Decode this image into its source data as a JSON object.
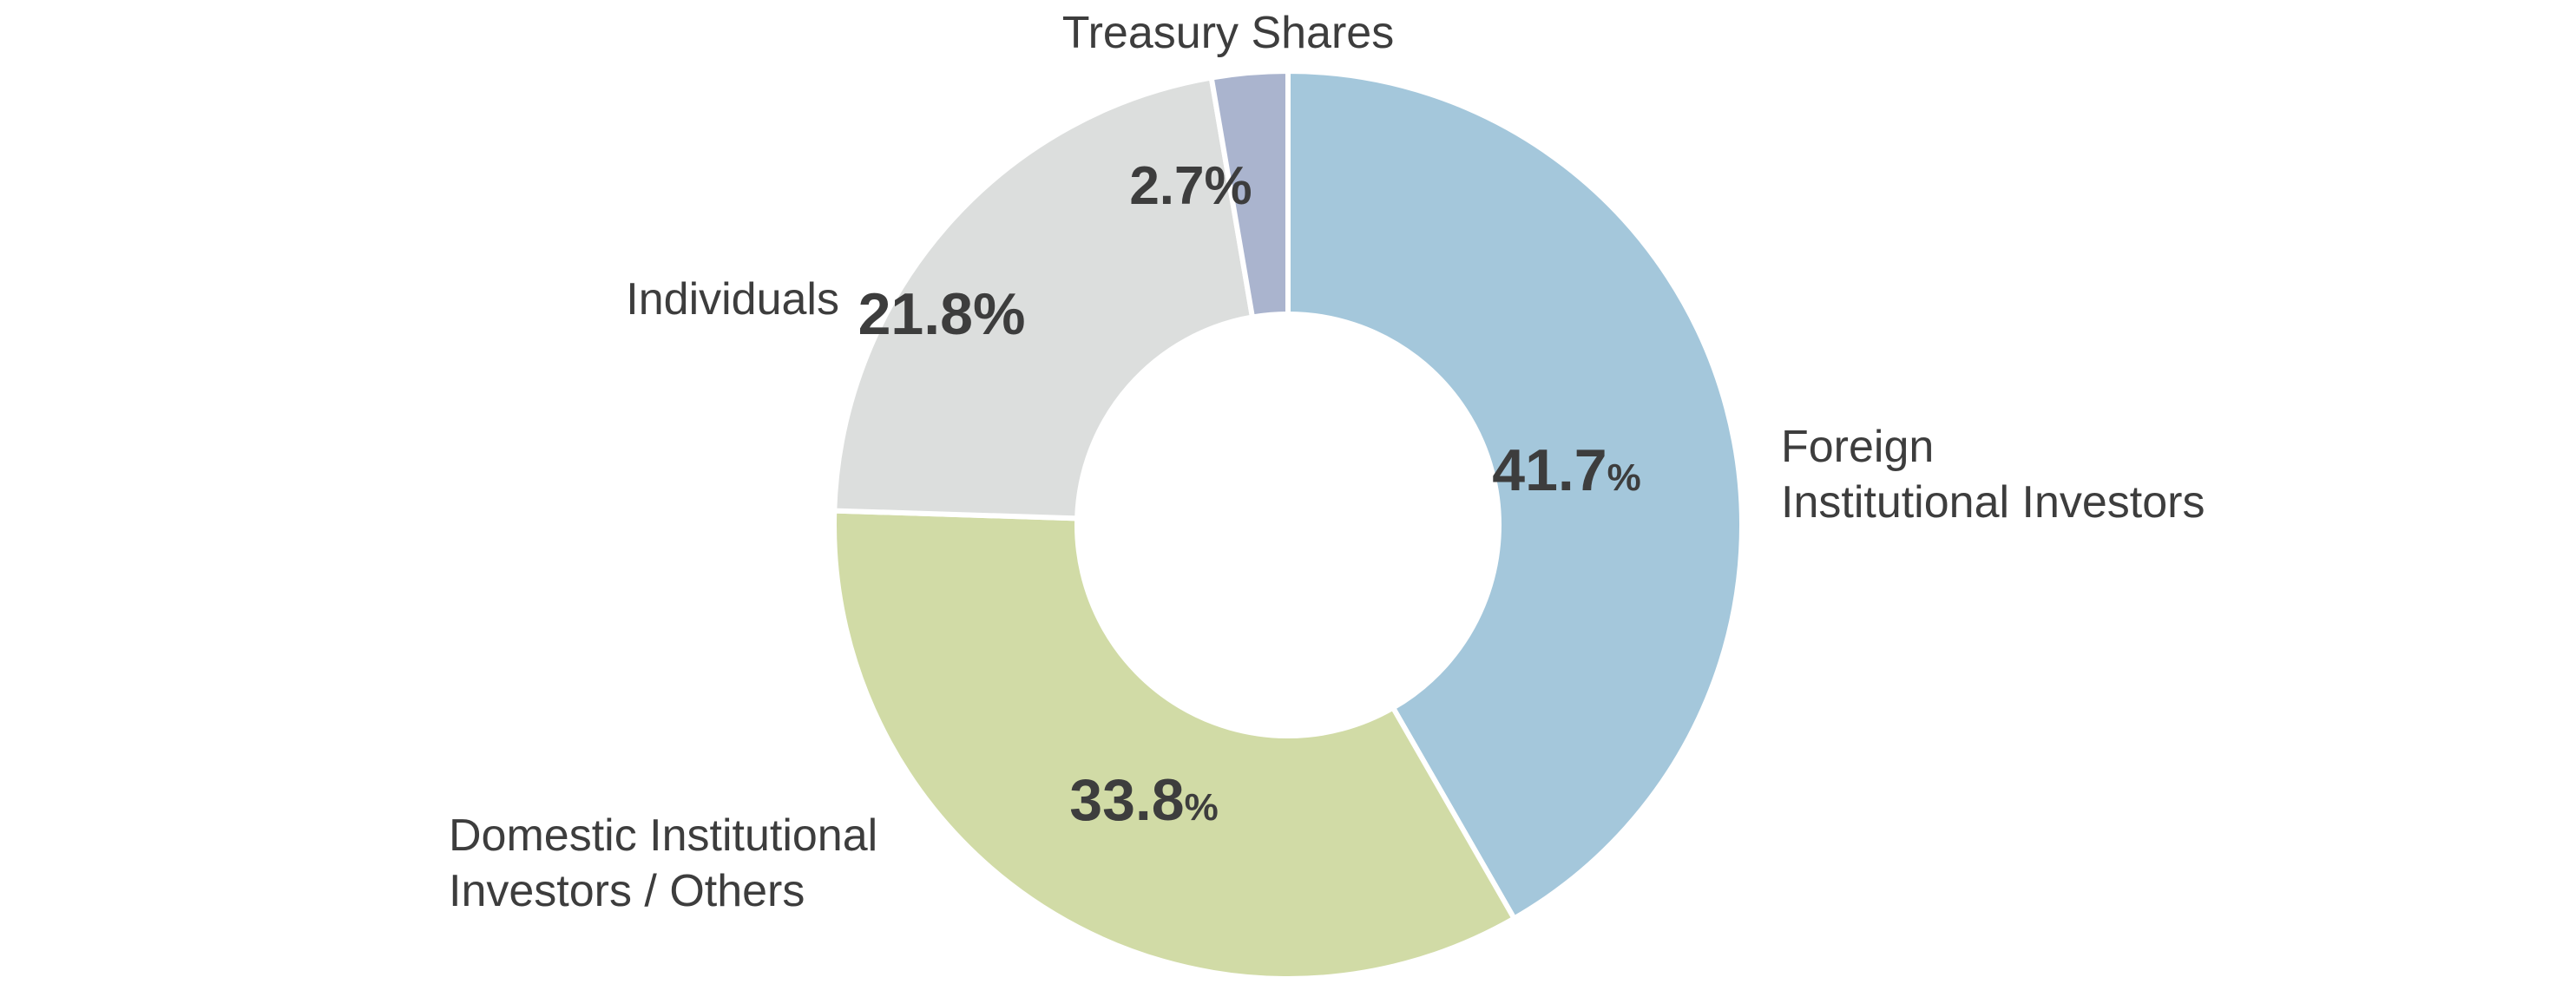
{
  "chart_data": {
    "type": "pie",
    "variant": "donut",
    "unit": "%",
    "slices": [
      {
        "label": "Foreign Institutional Investors",
        "label_lines": [
          "Foreign",
          "Institutional Investors"
        ],
        "value": 41.7,
        "value_label": "41.7",
        "color": "#a4c7db"
      },
      {
        "label": "Domestic Institutional Investors / Others",
        "label_lines": [
          "Domestic Institutional",
          "Investors / Others"
        ],
        "value": 33.8,
        "value_label": "33.8",
        "color": "#d1dba6"
      },
      {
        "label": "Individuals",
        "label_lines": [
          "Individuals"
        ],
        "value": 21.8,
        "value_label": "21.8",
        "color": "#dcdedd"
      },
      {
        "label": "Treasury Shares",
        "label_lines": [
          "Treasury Shares"
        ],
        "value": 2.7,
        "value_label": "2.7",
        "color": "#aab4ce"
      }
    ],
    "start_angle": "12 o'clock",
    "direction": "clockwise",
    "legend": "none (outside labels)"
  }
}
